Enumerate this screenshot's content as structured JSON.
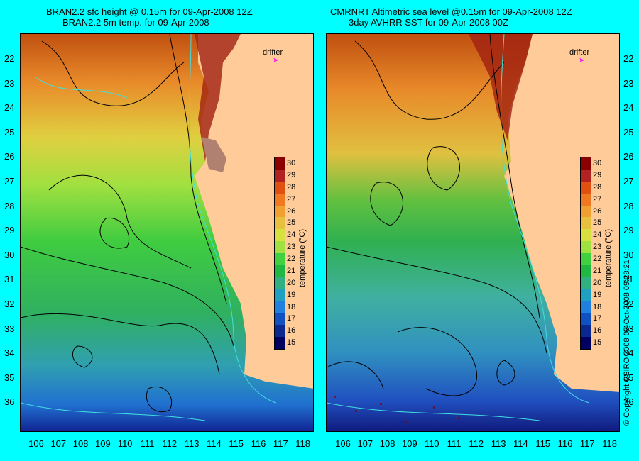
{
  "left": {
    "title_line1": "BRAN2.2 sfc height @ 0.15m for 09-Apr-2008 12Z",
    "title_line2": "BRAN2.2 5m temp. for 09-Apr-2008"
  },
  "right": {
    "title_line1": "CMRNRT Altimetric sea level  @0.15m  for 09-Apr-2008 12Z",
    "title_line2": "3day AVHRR SST for 09-Apr-2008 00Z"
  },
  "drifter_label": "drifter",
  "colorbar": {
    "unit_label": "temperature (°C)",
    "ticks": [
      "30",
      "29",
      "28",
      "27",
      "26",
      "25",
      "24",
      "23",
      "22",
      "21",
      "20",
      "19",
      "18",
      "17",
      "16",
      "15"
    ],
    "colors": [
      "#8b0000",
      "#b22222",
      "#e05010",
      "#f07820",
      "#f0a030",
      "#e8c040",
      "#d8e040",
      "#a0e040",
      "#40d040",
      "#20b840",
      "#30b080",
      "#20a0c0",
      "#2080e0",
      "#1050c0",
      "#0a2890",
      "#000060"
    ]
  },
  "latitude_ticks": [
    "22",
    "23",
    "24",
    "25",
    "26",
    "27",
    "28",
    "29",
    "30",
    "31",
    "32",
    "33",
    "34",
    "35",
    "36"
  ],
  "longitude_ticks": [
    "106",
    "107",
    "108",
    "109",
    "110",
    "111",
    "112",
    "113",
    "114",
    "115",
    "116",
    "117",
    "118"
  ],
  "copyright": "© Copyright CSIRO 2008    09-Oct-2008 09:28:21"
}
